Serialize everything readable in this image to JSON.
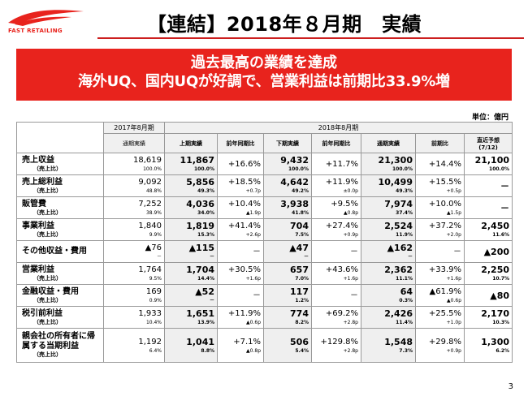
{
  "logo": {
    "text": "FAST RETAILING"
  },
  "title": "【連結】2018年８月期　実績",
  "banner": {
    "line1": "過去最高の業績を達成",
    "line2": "海外UQ、国内UQが好調で、営業利益は前期比33.9%増"
  },
  "unit": "単位：億円",
  "table": {
    "period_prev": "2017年8月期",
    "period_curr": "2018年8月期",
    "col_full_year": "通期実績",
    "col_h1": "上期実績",
    "col_yoy": "前年同期比",
    "col_h2": "下期実績",
    "col_full": "通期実績",
    "col_yoy2": "前期比",
    "col_forecast": "直近予想",
    "col_forecast_date": "(7/12)",
    "rows": [
      {
        "label": "売上収益",
        "sub": "（売上比）",
        "prev": "18,619",
        "prev_r": "100.0%",
        "h1": "11,867",
        "h1_r": "100.0%",
        "h1_yoy": "+16.6%",
        "h1_yoy_r": "",
        "h2": "9,432",
        "h2_r": "100.0%",
        "h2_yoy": "+11.7%",
        "h2_yoy_r": "",
        "fy": "21,300",
        "fy_r": "100.0%",
        "fy_yoy": "+14.4%",
        "fy_yoy_r": "",
        "fc": "21,100",
        "fc_r": "100.0%"
      },
      {
        "label": "売上総利益",
        "sub": "（売上比）",
        "prev": "9,092",
        "prev_r": "48.8%",
        "h1": "5,856",
        "h1_r": "49.3%",
        "h1_yoy": "+18.5%",
        "h1_yoy_r": "+0.7p",
        "h2": "4,642",
        "h2_r": "49.2%",
        "h2_yoy": "+11.9%",
        "h2_yoy_r": "±0.0p",
        "fy": "10,499",
        "fy_r": "49.3%",
        "fy_yoy": "+15.5%",
        "fy_yoy_r": "+0.5p",
        "fc": "－",
        "fc_r": ""
      },
      {
        "label": "販管費",
        "sub": "（売上比）",
        "prev": "7,252",
        "prev_r": "38.9%",
        "h1": "4,036",
        "h1_r": "34.0%",
        "h1_yoy": "+10.4%",
        "h1_yoy_r": "▲1.9p",
        "h2": "3,938",
        "h2_r": "41.8%",
        "h2_yoy": "+9.5%",
        "h2_yoy_r": "▲0.8p",
        "fy": "7,974",
        "fy_r": "37.4%",
        "fy_yoy": "+10.0%",
        "fy_yoy_r": "▲1.5p",
        "fc": "－",
        "fc_r": ""
      },
      {
        "label": "事業利益",
        "sub": "（売上比）",
        "prev": "1,840",
        "prev_r": "9.9%",
        "h1": "1,819",
        "h1_r": "15.3%",
        "h1_yoy": "+41.4%",
        "h1_yoy_r": "+2.6p",
        "h2": "704",
        "h2_r": "7.5%",
        "h2_yoy": "+27.4%",
        "h2_yoy_r": "+0.9p",
        "fy": "2,524",
        "fy_r": "11.9%",
        "fy_yoy": "+37.2%",
        "fy_yoy_r": "+2.0p",
        "fc": "2,450",
        "fc_r": "11.6%"
      },
      {
        "label": "その他収益・費用",
        "sub": "",
        "prev": "▲76",
        "prev_r": "－",
        "h1": "▲115",
        "h1_r": "－",
        "h1_yoy": "－",
        "h1_yoy_r": "",
        "h2": "▲47",
        "h2_r": "－",
        "h2_yoy": "－",
        "h2_yoy_r": "",
        "fy": "▲162",
        "fy_r": "－",
        "fy_yoy": "－",
        "fy_yoy_r": "",
        "fc": "▲200",
        "fc_r": ""
      },
      {
        "label": "営業利益",
        "sub": "（売上比）",
        "prev": "1,764",
        "prev_r": "9.5%",
        "h1": "1,704",
        "h1_r": "14.4%",
        "h1_yoy": "+30.5%",
        "h1_yoy_r": "+1.6p",
        "h2": "657",
        "h2_r": "7.0%",
        "h2_yoy": "+43.6%",
        "h2_yoy_r": "+1.6p",
        "fy": "2,362",
        "fy_r": "11.1%",
        "fy_yoy": "+33.9%",
        "fy_yoy_r": "+1.6p",
        "fc": "2,250",
        "fc_r": "10.7%"
      },
      {
        "label": "金融収益・費用",
        "sub": "（売上比）",
        "prev": "169",
        "prev_r": "0.9%",
        "h1": "▲52",
        "h1_r": "－",
        "h1_yoy": "－",
        "h1_yoy_r": "",
        "h2": "117",
        "h2_r": "1.2%",
        "h2_yoy": "－",
        "h2_yoy_r": "",
        "fy": "64",
        "fy_r": "0.3%",
        "fy_yoy": "▲61.9%",
        "fy_yoy_r": "▲0.6p",
        "fc": "▲80",
        "fc_r": ""
      },
      {
        "label": "税引前利益",
        "sub": "（売上比）",
        "prev": "1,933",
        "prev_r": "10.4%",
        "h1": "1,651",
        "h1_r": "13.9%",
        "h1_yoy": "+11.9%",
        "h1_yoy_r": "▲0.6p",
        "h2": "774",
        "h2_r": "8.2%",
        "h2_yoy": "+69.2%",
        "h2_yoy_r": "+2.8p",
        "fy": "2,426",
        "fy_r": "11.4%",
        "fy_yoy": "+25.5%",
        "fy_yoy_r": "+1.0p",
        "fc": "2,170",
        "fc_r": "10.3%"
      },
      {
        "label": "親会社の所有者に帰属する当期利益",
        "sub": "（売上比）",
        "prev": "1,192",
        "prev_r": "6.4%",
        "h1": "1,041",
        "h1_r": "8.8%",
        "h1_yoy": "+7.1%",
        "h1_yoy_r": "▲0.8p",
        "h2": "506",
        "h2_r": "5.4%",
        "h2_yoy": "+129.8%",
        "h2_yoy_r": "+2.8p",
        "fy": "1,548",
        "fy_r": "7.3%",
        "fy_yoy": "+29.8%",
        "fy_yoy_r": "+0.9p",
        "fc": "1,300",
        "fc_r": "6.2%"
      }
    ]
  },
  "page_number": "3",
  "colors": {
    "brand_red": "#e8231d",
    "rule_red": "#cc1f1f",
    "header_gray": "#f0f0f0"
  }
}
